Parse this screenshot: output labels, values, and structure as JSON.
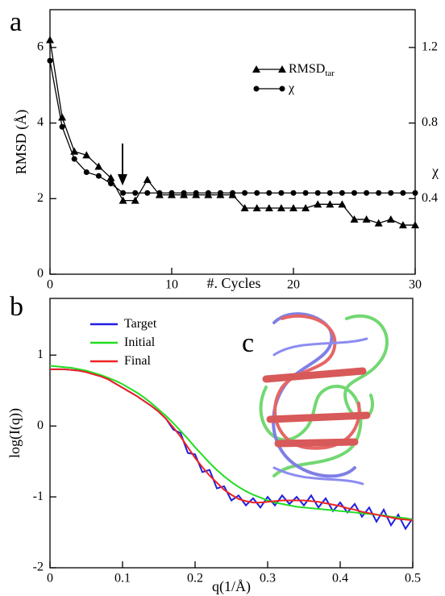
{
  "chart_data": [
    {
      "type": "line",
      "panel_label": "a",
      "x_label": "#. Cycles",
      "y_label": "RMSD (Å)",
      "y2_label": "χ",
      "x": [
        0,
        1,
        2,
        3,
        4,
        5,
        6,
        7,
        8,
        9,
        10,
        11,
        12,
        13,
        14,
        15,
        16,
        17,
        18,
        19,
        20,
        21,
        22,
        23,
        24,
        25,
        26,
        27,
        28,
        29,
        30
      ],
      "xlim": [
        0,
        30
      ],
      "xticks": [
        0,
        10,
        20,
        30
      ],
      "ylim": [
        0,
        7
      ],
      "yticks": [
        0,
        2,
        4,
        6
      ],
      "y2lim": [
        0,
        1.4
      ],
      "y2ticks": [
        0.4,
        0.8,
        1.2
      ],
      "series": [
        {
          "name": "RMSD",
          "subscript": "tar",
          "marker": "triangle",
          "color": "#000000",
          "values": [
            6.2,
            4.15,
            3.25,
            3.15,
            2.85,
            2.55,
            1.95,
            1.95,
            2.5,
            2.1,
            2.1,
            2.1,
            2.1,
            2.1,
            2.1,
            2.1,
            1.75,
            1.75,
            1.75,
            1.75,
            1.75,
            1.75,
            1.85,
            1.85,
            1.85,
            1.45,
            1.45,
            1.35,
            1.45,
            1.3,
            1.3
          ]
        },
        {
          "name": "χ",
          "marker": "circle",
          "color": "#000000",
          "axis": "y2",
          "values": [
            1.13,
            0.78,
            0.61,
            0.54,
            0.52,
            0.48,
            0.43,
            0.43,
            0.43,
            0.43,
            0.43,
            0.43,
            0.43,
            0.43,
            0.43,
            0.43,
            0.43,
            0.43,
            0.43,
            0.43,
            0.43,
            0.43,
            0.43,
            0.43,
            0.43,
            0.43,
            0.43,
            0.43,
            0.43,
            0.43,
            0.43
          ]
        }
      ]
    },
    {
      "type": "line",
      "panel_label": "b",
      "x_label": "q(1/Å)",
      "y_label": "log(I(q))",
      "x": [
        0,
        0.01,
        0.02,
        0.03,
        0.04,
        0.05,
        0.06,
        0.07,
        0.08,
        0.09,
        0.1,
        0.11,
        0.12,
        0.13,
        0.14,
        0.15,
        0.16,
        0.17,
        0.18,
        0.19,
        0.2,
        0.21,
        0.22,
        0.23,
        0.24,
        0.25,
        0.26,
        0.27,
        0.28,
        0.29,
        0.3,
        0.31,
        0.32,
        0.33,
        0.34,
        0.35,
        0.36,
        0.37,
        0.38,
        0.39,
        0.4,
        0.41,
        0.42,
        0.43,
        0.44,
        0.45,
        0.46,
        0.47,
        0.48,
        0.49,
        0.5
      ],
      "xlim": [
        0,
        0.5
      ],
      "xticks": [
        0,
        0.1,
        0.2,
        0.3,
        0.4,
        0.5
      ],
      "ylim": [
        -2,
        1.8
      ],
      "yticks": [
        -2,
        -1,
        0,
        1
      ],
      "series": [
        {
          "name": "Target",
          "color": "#1f1fe0",
          "values": [
            0.8,
            0.8,
            0.8,
            0.79,
            0.78,
            0.76,
            0.73,
            0.7,
            0.66,
            0.6,
            0.54,
            0.48,
            0.42,
            0.35,
            0.28,
            0.2,
            0.1,
            -0.05,
            -0.1,
            -0.38,
            -0.4,
            -0.65,
            -0.62,
            -0.88,
            -0.85,
            -1.05,
            -0.98,
            -1.12,
            -1.02,
            -1.15,
            -1.0,
            -1.12,
            -0.98,
            -1.1,
            -1.0,
            -1.12,
            -0.98,
            -1.15,
            -1.02,
            -1.2,
            -1.08,
            -1.22,
            -1.1,
            -1.28,
            -1.15,
            -1.35,
            -1.18,
            -1.4,
            -1.25,
            -1.45,
            -1.3
          ]
        },
        {
          "name": "Initial",
          "color": "#22dd22",
          "values": [
            0.85,
            0.84,
            0.83,
            0.82,
            0.8,
            0.78,
            0.75,
            0.72,
            0.68,
            0.64,
            0.59,
            0.53,
            0.47,
            0.4,
            0.32,
            0.23,
            0.14,
            0.04,
            -0.07,
            -0.18,
            -0.3,
            -0.41,
            -0.52,
            -0.62,
            -0.71,
            -0.79,
            -0.86,
            -0.92,
            -0.97,
            -1.01,
            -1.05,
            -1.08,
            -1.1,
            -1.12,
            -1.14,
            -1.15,
            -1.16,
            -1.17,
            -1.18,
            -1.19,
            -1.2,
            -1.21,
            -1.22,
            -1.23,
            -1.24,
            -1.25,
            -1.26,
            -1.28,
            -1.29,
            -1.3,
            -1.32
          ]
        },
        {
          "name": "Final",
          "color": "#ee2222",
          "values": [
            0.8,
            0.8,
            0.8,
            0.79,
            0.78,
            0.76,
            0.73,
            0.7,
            0.66,
            0.6,
            0.54,
            0.48,
            0.42,
            0.35,
            0.28,
            0.2,
            0.1,
            -0.02,
            -0.15,
            -0.3,
            -0.45,
            -0.58,
            -0.7,
            -0.8,
            -0.9,
            -0.97,
            -1.03,
            -1.06,
            -1.08,
            -1.08,
            -1.07,
            -1.06,
            -1.05,
            -1.05,
            -1.05,
            -1.05,
            -1.06,
            -1.07,
            -1.09,
            -1.11,
            -1.13,
            -1.16,
            -1.18,
            -1.21,
            -1.23,
            -1.25,
            -1.27,
            -1.29,
            -1.31,
            -1.32,
            -1.33
          ]
        }
      ]
    }
  ],
  "inset_label": "c"
}
